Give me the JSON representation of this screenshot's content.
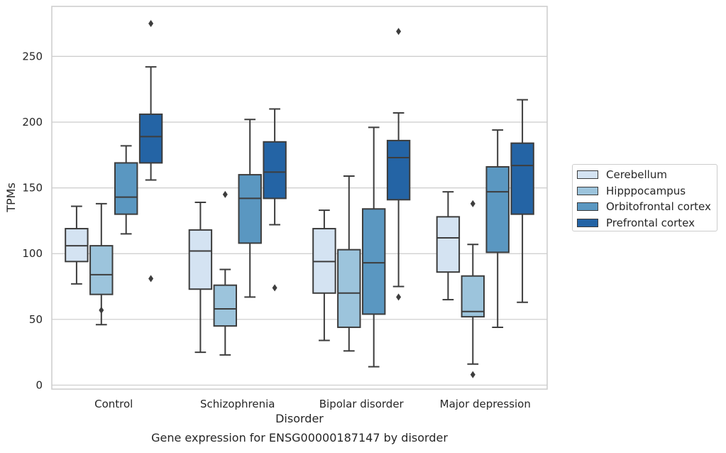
{
  "chart_data": {
    "type": "box",
    "title": "Gene expression for ENSG00000187147 by disorder",
    "xlabel": "Disorder",
    "ylabel": "TPMs",
    "ylim": [
      -3,
      288
    ],
    "yticks": [
      0,
      50,
      100,
      150,
      200,
      250
    ],
    "grid": true,
    "legend_position": "right",
    "categories": [
      "Control",
      "Schizophrenia",
      "Bipolar disorder",
      "Major depression"
    ],
    "series": [
      {
        "name": "Cerebellum",
        "color": "#d4e3f2",
        "boxes": [
          {
            "whislo": 77,
            "q1": 94,
            "med": 106,
            "q3": 119,
            "whishi": 136,
            "fliers": []
          },
          {
            "whislo": 25,
            "q1": 73,
            "med": 102,
            "q3": 118,
            "whishi": 139,
            "fliers": []
          },
          {
            "whislo": 34,
            "q1": 70,
            "med": 94,
            "q3": 119,
            "whishi": 133,
            "fliers": []
          },
          {
            "whislo": 65,
            "q1": 86,
            "med": 112,
            "q3": 128,
            "whishi": 147,
            "fliers": []
          }
        ]
      },
      {
        "name": "Hipppocampus",
        "color": "#9cc4dc",
        "boxes": [
          {
            "whislo": 46,
            "q1": 69,
            "med": 84,
            "q3": 106,
            "whishi": 138,
            "fliers": [
              57
            ]
          },
          {
            "whislo": 23,
            "q1": 45,
            "med": 58,
            "q3": 76,
            "whishi": 88,
            "fliers": [
              145
            ]
          },
          {
            "whislo": 26,
            "q1": 44,
            "med": 70,
            "q3": 103,
            "whishi": 159,
            "fliers": []
          },
          {
            "whislo": 16,
            "q1": 52,
            "med": 56,
            "q3": 83,
            "whishi": 107,
            "fliers": [
              8,
              138
            ]
          }
        ]
      },
      {
        "name": "Orbitofrontal cortex",
        "color": "#5a97c1",
        "boxes": [
          {
            "whislo": 115,
            "q1": 130,
            "med": 143,
            "q3": 169,
            "whishi": 182,
            "fliers": []
          },
          {
            "whislo": 67,
            "q1": 108,
            "med": 142,
            "q3": 160,
            "whishi": 202,
            "fliers": []
          },
          {
            "whislo": 14,
            "q1": 54,
            "med": 93,
            "q3": 134,
            "whishi": 196,
            "fliers": []
          },
          {
            "whislo": 44,
            "q1": 101,
            "med": 147,
            "q3": 166,
            "whishi": 194,
            "fliers": []
          }
        ]
      },
      {
        "name": "Prefrontal cortex",
        "color": "#2464a5",
        "boxes": [
          {
            "whislo": 156,
            "q1": 169,
            "med": 189,
            "q3": 206,
            "whishi": 242,
            "fliers": [
              81,
              275
            ]
          },
          {
            "whislo": 122,
            "q1": 142,
            "med": 162,
            "q3": 185,
            "whishi": 210,
            "fliers": [
              74
            ]
          },
          {
            "whislo": 75,
            "q1": 141,
            "med": 173,
            "q3": 186,
            "whishi": 207,
            "fliers": [
              67,
              269
            ]
          },
          {
            "whislo": 63,
            "q1": 130,
            "med": 167,
            "q3": 184,
            "whishi": 217,
            "fliers": []
          }
        ]
      }
    ]
  }
}
